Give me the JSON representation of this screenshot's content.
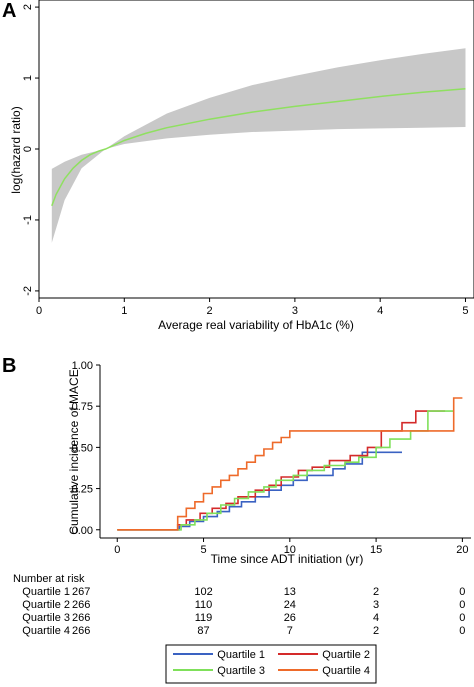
{
  "chart_data": [
    {
      "panel": "A",
      "type": "area",
      "xlabel": "Average real variability of HbA1c (%)",
      "ylabel": "log(hazard ratio)",
      "xlim": [
        0,
        5.1
      ],
      "ylim": [
        -2.1,
        2.1
      ],
      "xticks": [
        "0",
        "1",
        "2",
        "3",
        "4",
        "5"
      ],
      "yticks": [
        "-2",
        "-1",
        "0",
        "1",
        "2"
      ],
      "curve_color": "#8fe060",
      "band_color": "#c8c8c8",
      "grid": false,
      "series": [
        {
          "role": "estimate",
          "x": [
            0.15,
            0.2,
            0.3,
            0.4,
            0.5,
            0.6,
            0.7,
            0.78,
            1.0,
            1.25,
            1.5,
            2.0,
            2.5,
            3.0,
            3.5,
            4.0,
            4.5,
            5.0
          ],
          "y": [
            -0.8,
            -0.64,
            -0.42,
            -0.27,
            -0.16,
            -0.08,
            -0.03,
            0.0,
            0.12,
            0.22,
            0.3,
            0.42,
            0.52,
            0.6,
            0.67,
            0.74,
            0.8,
            0.85
          ]
        },
        {
          "role": "ci_upper",
          "x": [
            0.15,
            0.3,
            0.5,
            0.78,
            1.0,
            1.5,
            2.0,
            2.5,
            3.0,
            3.5,
            4.0,
            4.5,
            5.0
          ],
          "y": [
            -0.28,
            -0.18,
            -0.08,
            0.0,
            0.18,
            0.5,
            0.72,
            0.9,
            1.03,
            1.15,
            1.25,
            1.34,
            1.42
          ]
        },
        {
          "role": "ci_lower",
          "x": [
            0.15,
            0.3,
            0.5,
            0.78,
            1.0,
            1.5,
            2.0,
            2.5,
            3.0,
            3.5,
            4.0,
            4.5,
            5.0
          ],
          "y": [
            -1.32,
            -0.72,
            -0.27,
            0.0,
            0.07,
            0.15,
            0.2,
            0.24,
            0.26,
            0.28,
            0.29,
            0.3,
            0.31
          ]
        }
      ]
    },
    {
      "panel": "B",
      "type": "line",
      "step": true,
      "xlabel": "Time since ADT initiation (yr)",
      "ylabel": "Cumulative incidence of MACE",
      "xlim": [
        -1,
        20.5
      ],
      "ylim": [
        -0.05,
        1.0
      ],
      "xticks": [
        "0",
        "5",
        "10",
        "15",
        "20"
      ],
      "yticks": [
        "0.00",
        "0.25",
        "0.50",
        "0.75",
        "1.00"
      ],
      "grid": false,
      "legend_position": "bottom",
      "series": [
        {
          "name": "Quartile 1",
          "color": "#3a62c2",
          "x": [
            0,
            3.2,
            3.6,
            4.2,
            5.0,
            5.8,
            6.5,
            7.2,
            8.0,
            8.8,
            9.5,
            10.2,
            11.0,
            12.5,
            13.2,
            14.2,
            15.2,
            16.5
          ],
          "y": [
            0,
            0,
            0.02,
            0.05,
            0.08,
            0.11,
            0.14,
            0.17,
            0.2,
            0.24,
            0.27,
            0.3,
            0.33,
            0.37,
            0.4,
            0.47,
            0.47,
            0.47
          ]
        },
        {
          "name": "Quartile 2",
          "color": "#d42a2a",
          "x": [
            0,
            3.0,
            3.5,
            4.0,
            4.8,
            5.5,
            6.3,
            7.0,
            8.0,
            8.8,
            9.5,
            10.5,
            11.3,
            12.3,
            13.5,
            14.5,
            15.3,
            16.5,
            17.3,
            19.0
          ],
          "y": [
            0,
            0,
            0.03,
            0.06,
            0.1,
            0.13,
            0.16,
            0.2,
            0.24,
            0.27,
            0.32,
            0.36,
            0.38,
            0.42,
            0.45,
            0.5,
            0.6,
            0.65,
            0.72,
            0.72
          ]
        },
        {
          "name": "Quartile 3",
          "color": "#7fe05a",
          "x": [
            0,
            3.1,
            3.7,
            4.5,
            5.2,
            6.0,
            6.8,
            7.6,
            8.5,
            9.2,
            10.2,
            11.0,
            12.0,
            13.2,
            14.0,
            15.0,
            15.8,
            17.0,
            18.0,
            19.5
          ],
          "y": [
            0,
            0,
            0.03,
            0.06,
            0.1,
            0.15,
            0.19,
            0.23,
            0.26,
            0.3,
            0.33,
            0.36,
            0.39,
            0.41,
            0.44,
            0.5,
            0.55,
            0.6,
            0.72,
            0.72
          ]
        },
        {
          "name": "Quartile 4",
          "color": "#ee6a2a",
          "x": [
            0,
            3.0,
            3.5,
            4.0,
            4.5,
            5.0,
            5.5,
            6.0,
            6.5,
            7.0,
            7.5,
            8.0,
            8.5,
            9.0,
            9.5,
            10.0,
            11.5,
            19.5,
            20.0
          ],
          "y": [
            0,
            0,
            0.08,
            0.13,
            0.17,
            0.22,
            0.26,
            0.3,
            0.33,
            0.37,
            0.41,
            0.45,
            0.49,
            0.53,
            0.56,
            0.6,
            0.6,
            0.8,
            0.8
          ]
        }
      ],
      "risk_table": {
        "title": "Number at risk",
        "times": [
          0,
          5,
          10,
          15,
          20
        ],
        "rows": [
          {
            "label": "Quartile 1",
            "values": [
              "267",
              "102",
              "13",
              "2",
              "0"
            ]
          },
          {
            "label": "Quartile 2",
            "values": [
              "266",
              "110",
              "24",
              "3",
              "0"
            ]
          },
          {
            "label": "Quartile 3",
            "values": [
              "266",
              "119",
              "26",
              "4",
              "0"
            ]
          },
          {
            "label": "Quartile 4",
            "values": [
              "266",
              "87",
              "7",
              "2",
              "0"
            ]
          }
        ]
      }
    }
  ],
  "panel_labels": [
    "A",
    "B"
  ]
}
